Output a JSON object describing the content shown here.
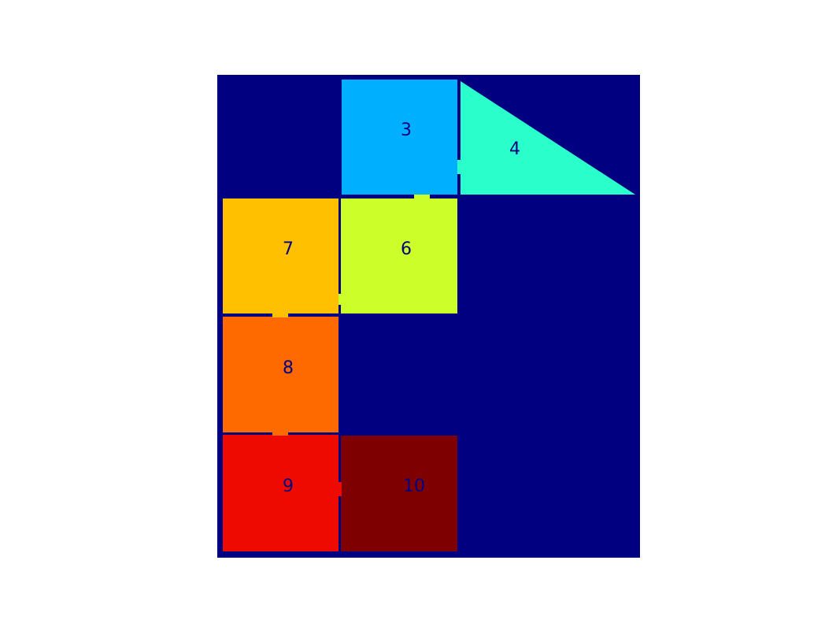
{
  "tiles": [
    {
      "id": "tile-3",
      "label": "3",
      "color": "#00b0ff",
      "label_color": "#000080"
    },
    {
      "id": "tile-4",
      "label": "4",
      "color": "#2affcc",
      "label_color": "#000080"
    },
    {
      "id": "tile-6",
      "label": "6",
      "color": "#ccff2a",
      "label_color": "#000080"
    },
    {
      "id": "tile-7",
      "label": "7",
      "color": "#ffc000",
      "label_color": "#000080"
    },
    {
      "id": "tile-8",
      "label": "8",
      "color": "#ff6a00",
      "label_color": "#000080"
    },
    {
      "id": "tile-9",
      "label": "9",
      "color": "#ef0a00",
      "label_color": "#000080"
    },
    {
      "id": "tile-10",
      "label": "10",
      "color": "#7f0000",
      "label_color": "#000080"
    }
  ],
  "background_color": "#000080"
}
